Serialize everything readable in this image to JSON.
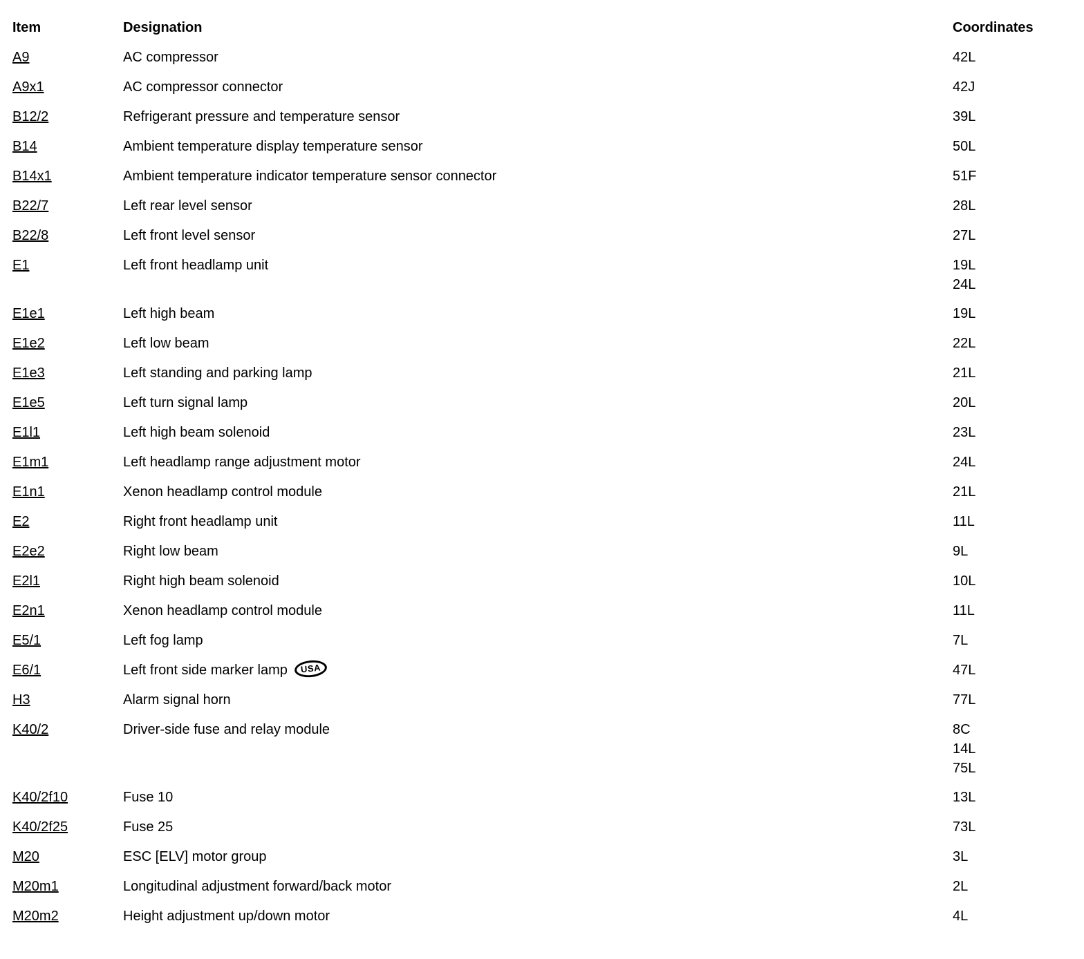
{
  "page": {
    "headers": {
      "item": "Item",
      "designation": "Designation",
      "coordinates": "Coordinates"
    }
  },
  "table": {
    "usa_badge_label": "USA",
    "rows": [
      {
        "item": "A9",
        "designation": "AC compressor",
        "coordinates": [
          "42L"
        ]
      },
      {
        "item": "A9x1",
        "designation": "AC compressor connector",
        "coordinates": [
          "42J"
        ]
      },
      {
        "item": "B12/2",
        "designation": "Refrigerant pressure and temperature sensor",
        "coordinates": [
          "39L"
        ]
      },
      {
        "item": "B14",
        "designation": "Ambient temperature display temperature sensor",
        "coordinates": [
          "50L"
        ]
      },
      {
        "item": "B14x1",
        "designation": "Ambient temperature indicator temperature sensor connector",
        "coordinates": [
          "51F"
        ]
      },
      {
        "item": "B22/7",
        "designation": "Left rear level sensor",
        "coordinates": [
          "28L"
        ]
      },
      {
        "item": "B22/8",
        "designation": "Left front level sensor",
        "coordinates": [
          "27L"
        ]
      },
      {
        "item": "E1",
        "designation": "Left front headlamp unit",
        "coordinates": [
          "19L",
          "24L"
        ]
      },
      {
        "item": "E1e1",
        "designation": "Left high beam",
        "coordinates": [
          "19L"
        ]
      },
      {
        "item": "E1e2",
        "designation": "Left low beam",
        "coordinates": [
          "22L"
        ]
      },
      {
        "item": "E1e3",
        "designation": "Left standing and parking lamp",
        "coordinates": [
          "21L"
        ]
      },
      {
        "item": "E1e5",
        "designation": "Left turn signal lamp",
        "coordinates": [
          "20L"
        ]
      },
      {
        "item": "E1l1",
        "designation": "Left high beam solenoid",
        "coordinates": [
          "23L"
        ]
      },
      {
        "item": "E1m1",
        "designation": "Left headlamp range adjustment motor",
        "coordinates": [
          "24L"
        ]
      },
      {
        "item": "E1n1",
        "designation": "Xenon headlamp control module",
        "coordinates": [
          "21L"
        ]
      },
      {
        "item": "E2",
        "designation": "Right front headlamp unit",
        "coordinates": [
          "11L"
        ]
      },
      {
        "item": "E2e2",
        "designation": "Right low beam",
        "coordinates": [
          "9L"
        ]
      },
      {
        "item": "E2l1",
        "designation": "Right high beam solenoid",
        "coordinates": [
          "10L"
        ]
      },
      {
        "item": "E2n1",
        "designation": "Xenon headlamp control module",
        "coordinates": [
          "11L"
        ]
      },
      {
        "item": "E5/1",
        "designation": "Left fog lamp",
        "coordinates": [
          "7L"
        ]
      },
      {
        "item": "E6/1",
        "designation": "Left front side marker lamp",
        "usa_badge": true,
        "coordinates": [
          "47L"
        ]
      },
      {
        "item": "H3",
        "designation": "Alarm signal horn",
        "coordinates": [
          "77L"
        ]
      },
      {
        "item": "K40/2",
        "designation": "Driver-side fuse and relay module",
        "coordinates": [
          "8C",
          "14L",
          "75L"
        ]
      },
      {
        "item": "K40/2f10",
        "designation": "Fuse 10",
        "coordinates": [
          "13L"
        ]
      },
      {
        "item": "K40/2f25",
        "designation": "Fuse 25",
        "coordinates": [
          "73L"
        ]
      },
      {
        "item": "M20",
        "designation": "ESC [ELV] motor group",
        "coordinates": [
          "3L"
        ]
      },
      {
        "item": "M20m1",
        "designation": "Longitudinal adjustment forward/back motor",
        "coordinates": [
          "2L"
        ]
      },
      {
        "item": "M20m2",
        "designation": "Height adjustment up/down motor",
        "coordinates": [
          "4L"
        ]
      }
    ]
  }
}
